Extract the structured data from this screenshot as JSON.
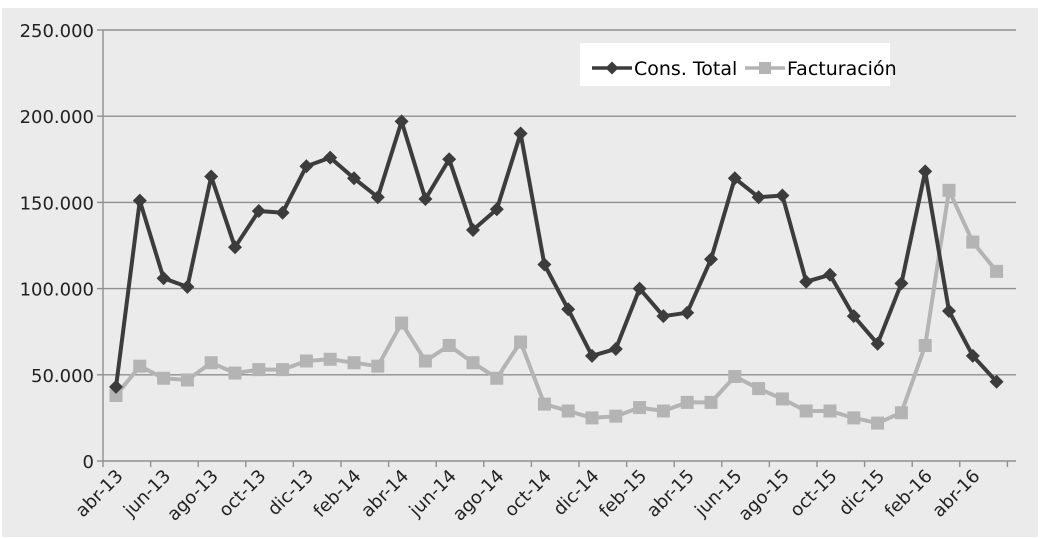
{
  "chart_data": {
    "type": "line",
    "title": "",
    "xlabel": "",
    "ylabel": "",
    "ylim": [
      0,
      250000
    ],
    "y_ticks": [
      "0",
      "50.000",
      "100.000",
      "150.000",
      "200.000",
      "250.000"
    ],
    "x_tick_labels": [
      "abr-13",
      "jun-13",
      "ago-13",
      "oct-13",
      "dic-13",
      "feb-14",
      "abr-14",
      "jun-14",
      "ago-14",
      "oct-14",
      "dic-14",
      "feb-15",
      "abr-15",
      "jun-15",
      "ago-15",
      "oct-15",
      "dic-15",
      "feb-16",
      "abr-16"
    ],
    "categories": [
      "abr-13",
      "may-13",
      "jun-13",
      "jul-13",
      "ago-13",
      "sep-13",
      "oct-13",
      "nov-13",
      "dic-13",
      "ene-14",
      "feb-14",
      "mar-14",
      "abr-14",
      "may-14",
      "jun-14",
      "jul-14",
      "ago-14",
      "sep-14",
      "oct-14",
      "nov-14",
      "dic-14",
      "ene-15",
      "feb-15",
      "mar-15",
      "abr-15",
      "may-15",
      "jun-15",
      "jul-15",
      "ago-15",
      "sep-15",
      "oct-15",
      "nov-15",
      "dic-15",
      "ene-16",
      "feb-16",
      "mar-16",
      "abr-16",
      "may-16"
    ],
    "grid": true,
    "legend_position": "top-right",
    "background": "#ebebeb",
    "series": [
      {
        "name": "Cons. Total",
        "color": "#3c3c3c",
        "marker": "diamond",
        "values": [
          43000,
          151000,
          106000,
          101000,
          165000,
          124000,
          145000,
          144000,
          171000,
          176000,
          164000,
          153000,
          197000,
          152000,
          175000,
          134000,
          146000,
          190000,
          114000,
          88000,
          61000,
          65000,
          100000,
          84000,
          86000,
          117000,
          164000,
          153000,
          154000,
          104000,
          108000,
          84000,
          68000,
          103000,
          168000,
          87000,
          61000,
          46000
        ]
      },
      {
        "name": "Facturación",
        "color": "#b4b4b4",
        "marker": "square",
        "values": [
          38000,
          55000,
          48000,
          47000,
          57000,
          51000,
          53000,
          53000,
          58000,
          59000,
          57000,
          55000,
          80000,
          58000,
          67000,
          57000,
          48000,
          69000,
          33000,
          29000,
          25000,
          26000,
          31000,
          29000,
          34000,
          34000,
          49000,
          42000,
          36000,
          29000,
          29000,
          25000,
          22000,
          28000,
          67000,
          157000,
          127000,
          110000
        ]
      }
    ]
  }
}
